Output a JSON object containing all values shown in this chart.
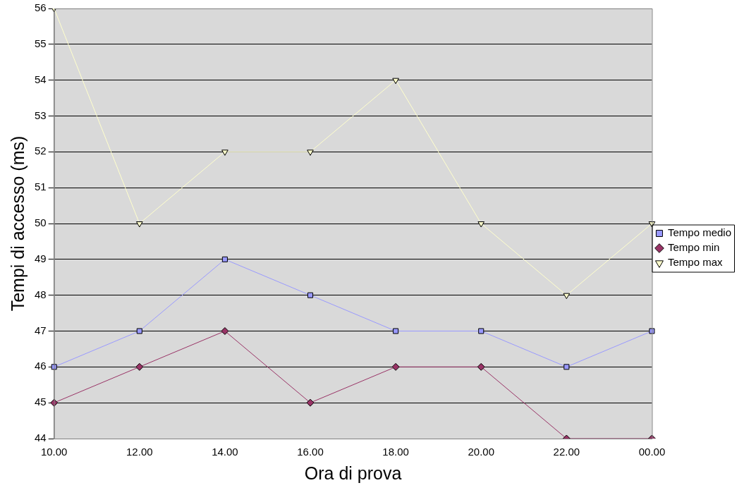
{
  "chart_data": {
    "type": "line",
    "xlabel": "Ora di prova",
    "ylabel": "Tempi di accesso (ms)",
    "categories": [
      "10.00",
      "12.00",
      "14.00",
      "16.00",
      "18.00",
      "20.00",
      "22.00",
      "00.00"
    ],
    "series": [
      {
        "name": "Tempo medio",
        "color": "#9999ff",
        "marker": "square",
        "values": [
          46,
          47,
          49,
          48,
          47,
          47,
          46,
          47
        ]
      },
      {
        "name": "Tempo min",
        "color": "#993366",
        "marker": "diamond",
        "values": [
          45,
          46,
          47,
          45,
          46,
          46,
          44,
          44
        ]
      },
      {
        "name": "Tempo max",
        "color": "#ffffcc",
        "marker": "triangle",
        "values": [
          56,
          50,
          52,
          52,
          54,
          50,
          48,
          50
        ]
      }
    ],
    "ylim": [
      44,
      56
    ],
    "yticks": [
      44,
      45,
      46,
      47,
      48,
      49,
      50,
      51,
      52,
      53,
      54,
      55,
      56
    ],
    "grid": "y",
    "legend": "right",
    "line_style": "solid"
  }
}
